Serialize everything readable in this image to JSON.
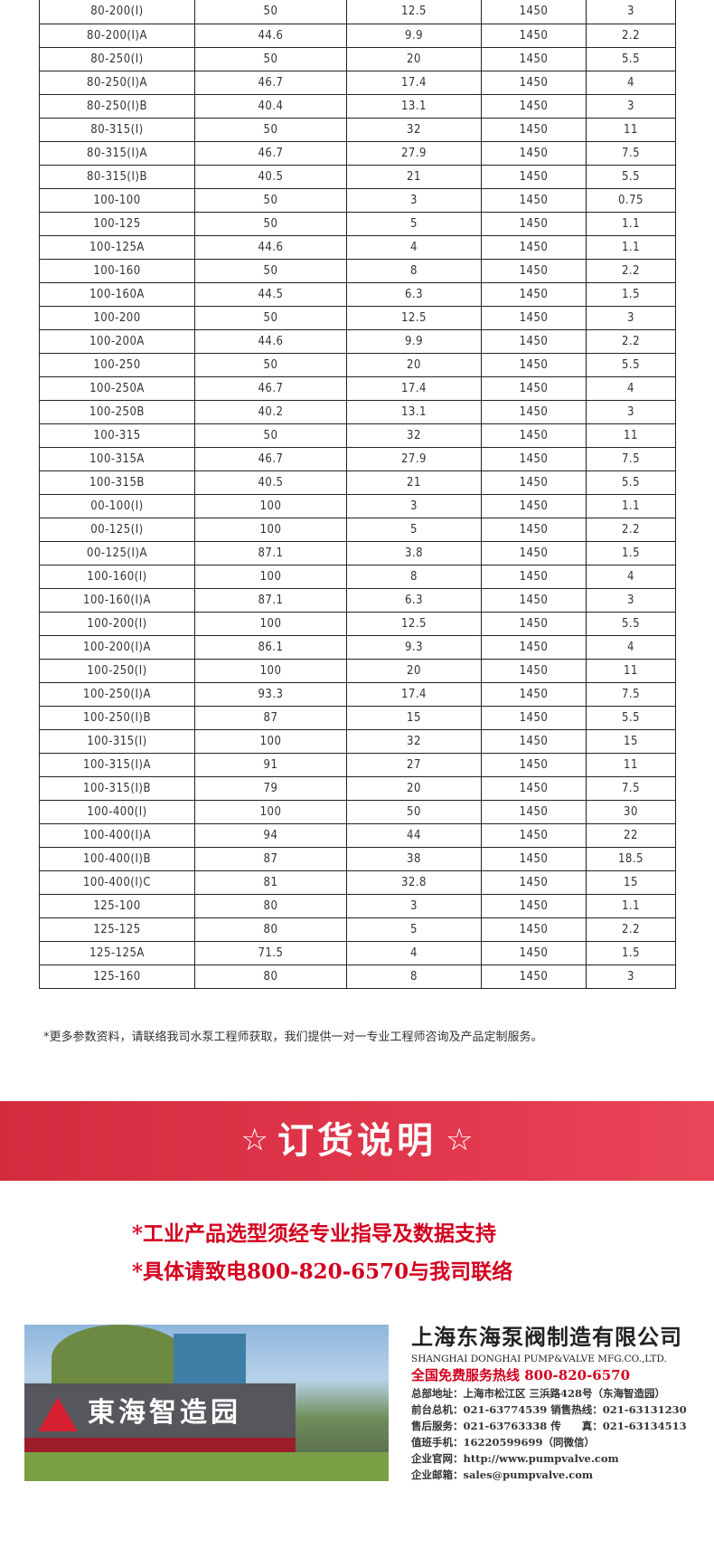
{
  "table": {
    "rows": [
      [
        "80-200(I)",
        "50",
        "12.5",
        "1450",
        "3"
      ],
      [
        "80-200(I)A",
        "44.6",
        "9.9",
        "1450",
        "2.2"
      ],
      [
        "80-250(I)",
        "50",
        "20",
        "1450",
        "5.5"
      ],
      [
        "80-250(I)A",
        "46.7",
        "17.4",
        "1450",
        "4"
      ],
      [
        "80-250(I)B",
        "40.4",
        "13.1",
        "1450",
        "3"
      ],
      [
        "80-315(I)",
        "50",
        "32",
        "1450",
        "11"
      ],
      [
        "80-315(I)A",
        "46.7",
        "27.9",
        "1450",
        "7.5"
      ],
      [
        "80-315(I)B",
        "40.5",
        "21",
        "1450",
        "5.5"
      ],
      [
        "100-100",
        "50",
        "3",
        "1450",
        "0.75"
      ],
      [
        "100-125",
        "50",
        "5",
        "1450",
        "1.1"
      ],
      [
        "100-125A",
        "44.6",
        "4",
        "1450",
        "1.1"
      ],
      [
        "100-160",
        "50",
        "8",
        "1450",
        "2.2"
      ],
      [
        "100-160A",
        "44.5",
        "6.3",
        "1450",
        "1.5"
      ],
      [
        "100-200",
        "50",
        "12.5",
        "1450",
        "3"
      ],
      [
        "100-200A",
        "44.6",
        "9.9",
        "1450",
        "2.2"
      ],
      [
        "100-250",
        "50",
        "20",
        "1450",
        "5.5"
      ],
      [
        "100-250A",
        "46.7",
        "17.4",
        "1450",
        "4"
      ],
      [
        "100-250B",
        "40.2",
        "13.1",
        "1450",
        "3"
      ],
      [
        "100-315",
        "50",
        "32",
        "1450",
        "11"
      ],
      [
        "100-315A",
        "46.7",
        "27.9",
        "1450",
        "7.5"
      ],
      [
        "100-315B",
        "40.5",
        "21",
        "1450",
        "5.5"
      ],
      [
        "00-100(I)",
        "100",
        "3",
        "1450",
        "1.1"
      ],
      [
        "00-125(I)",
        "100",
        "5",
        "1450",
        "2.2"
      ],
      [
        "00-125(I)A",
        "87.1",
        "3.8",
        "1450",
        "1.5"
      ],
      [
        "100-160(I)",
        "100",
        "8",
        "1450",
        "4"
      ],
      [
        "100-160(I)A",
        "87.1",
        "6.3",
        "1450",
        "3"
      ],
      [
        "100-200(I)",
        "100",
        "12.5",
        "1450",
        "5.5"
      ],
      [
        "100-200(I)A",
        "86.1",
        "9.3",
        "1450",
        "4"
      ],
      [
        "100-250(I)",
        "100",
        "20",
        "1450",
        "11"
      ],
      [
        "100-250(I)A",
        "93.3",
        "17.4",
        "1450",
        "7.5"
      ],
      [
        "100-250(I)B",
        "87",
        "15",
        "1450",
        "5.5"
      ],
      [
        "100-315(I)",
        "100",
        "32",
        "1450",
        "15"
      ],
      [
        "100-315(I)A",
        "91",
        "27",
        "1450",
        "11"
      ],
      [
        "100-315(I)B",
        "79",
        "20",
        "1450",
        "7.5"
      ],
      [
        "100-400(I)",
        "100",
        "50",
        "1450",
        "30"
      ],
      [
        "100-400(I)A",
        "94",
        "44",
        "1450",
        "22"
      ],
      [
        "100-400(I)B",
        "87",
        "38",
        "1450",
        "18.5"
      ],
      [
        "100-400(I)C",
        "81",
        "32.8",
        "1450",
        "15"
      ],
      [
        "125-100",
        "80",
        "3",
        "1450",
        "1.1"
      ],
      [
        "125-125",
        "80",
        "5",
        "1450",
        "2.2"
      ],
      [
        "125-125A",
        "71.5",
        "4",
        "1450",
        "1.5"
      ],
      [
        "125-160",
        "80",
        "8",
        "1450",
        "3"
      ]
    ]
  },
  "note": "*更多参数资料，请联络我司水泵工程师获取，我们提供一对一专业工程师咨询及产品定制服务。",
  "banner": {
    "star": "☆",
    "title": "订货说明",
    "color": "#d42b3f"
  },
  "order_lines": [
    "*工业产品选型须经专业指导及数据支持",
    "*具体请致电800-820-6570与我司联络"
  ],
  "photo": {
    "sign": "東海智造园"
  },
  "company": {
    "name_cn": "上海东海泵阀制造有限公司",
    "name_en": "SHANGHAI DONGHAI PUMP&VALVE MFG.CO.,LTD.",
    "hotline": "全国免费服务热线  800-820-6570",
    "lines": [
      "总部地址：上海市松江区 三浜路428号（东海智造园）",
      "前台总机：021-63774539   销售热线：021-63131230",
      "售后服务：021-63763338   传　　真：021-63134513",
      "值班手机：16220599699（同微信）",
      "企业官网：http://www.pumpvalve.com",
      "企业邮箱：sales@pumpvalve.com"
    ]
  }
}
